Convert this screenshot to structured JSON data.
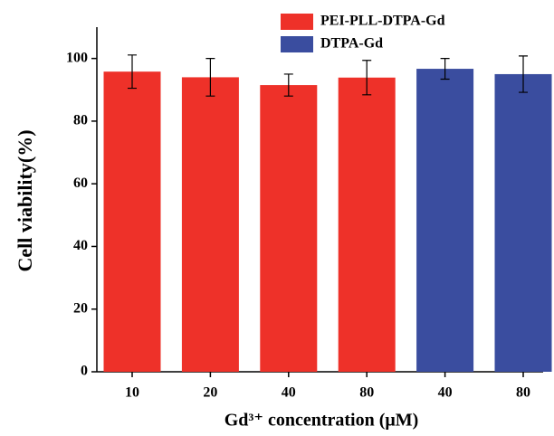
{
  "chart_data": {
    "type": "bar",
    "x_label": "Gd³⁺ concentration (μM)",
    "y_label": "Cell viability(%)",
    "categories": [
      "10",
      "20",
      "40",
      "80",
      "40",
      "80"
    ],
    "series": [
      {
        "name": "PEI-PLL-DTPA-Gd",
        "color": "#ee3129",
        "values": [
          95.8,
          94,
          91.5,
          93.9,
          null,
          null
        ],
        "errors": [
          5.3,
          6,
          3.5,
          5.5,
          null,
          null
        ]
      },
      {
        "name": "DTPA-Gd",
        "color": "#3a4d9f",
        "values": [
          null,
          null,
          null,
          null,
          96.7,
          95
        ],
        "errors": [
          null,
          null,
          null,
          null,
          3.3,
          5.8
        ]
      }
    ],
    "ylim": [
      0,
      110
    ],
    "yticks": [
      0,
      20,
      40,
      60,
      80,
      100
    ],
    "grid": false,
    "legend": "top"
  }
}
